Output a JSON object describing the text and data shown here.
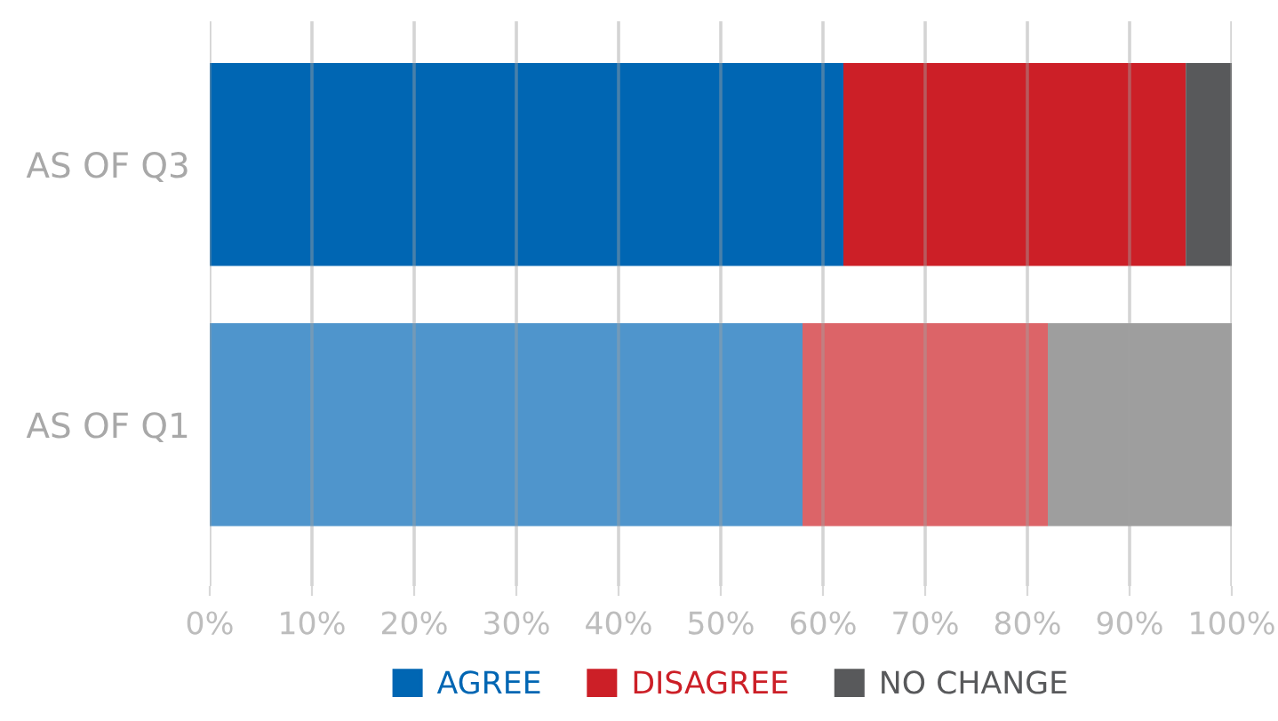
{
  "chart_data": {
    "type": "bar",
    "orientation": "horizontal",
    "stacked": true,
    "categories": [
      "AS OF Q3",
      "AS OF Q1"
    ],
    "series": [
      {
        "name": "AGREE",
        "color": "#0066b3",
        "colors": [
          "#0066b3",
          "#4f95cc"
        ],
        "values": [
          62,
          58
        ]
      },
      {
        "name": "DISAGREE",
        "color": "#cc1f27",
        "colors": [
          "#cc1f27",
          "#dc6468"
        ],
        "values": [
          33.5,
          24
        ]
      },
      {
        "name": "NO CHANGE",
        "color": "#58595b",
        "colors": [
          "#58595b",
          "#9e9e9e"
        ],
        "values": [
          4.5,
          18
        ]
      }
    ],
    "xlim": [
      0,
      100
    ],
    "xticks": [
      {
        "value": 0,
        "label": "0%"
      },
      {
        "value": 10,
        "label": "10%"
      },
      {
        "value": 20,
        "label": "20%"
      },
      {
        "value": 30,
        "label": "30%"
      },
      {
        "value": 40,
        "label": "40%"
      },
      {
        "value": 50,
        "label": "50%"
      },
      {
        "value": 60,
        "label": "60%"
      },
      {
        "value": 70,
        "label": "70%"
      },
      {
        "value": 80,
        "label": "80%"
      },
      {
        "value": 90,
        "label": "90%"
      },
      {
        "value": 100,
        "label": "100%"
      }
    ],
    "grid": "x",
    "legend": "bottom"
  }
}
